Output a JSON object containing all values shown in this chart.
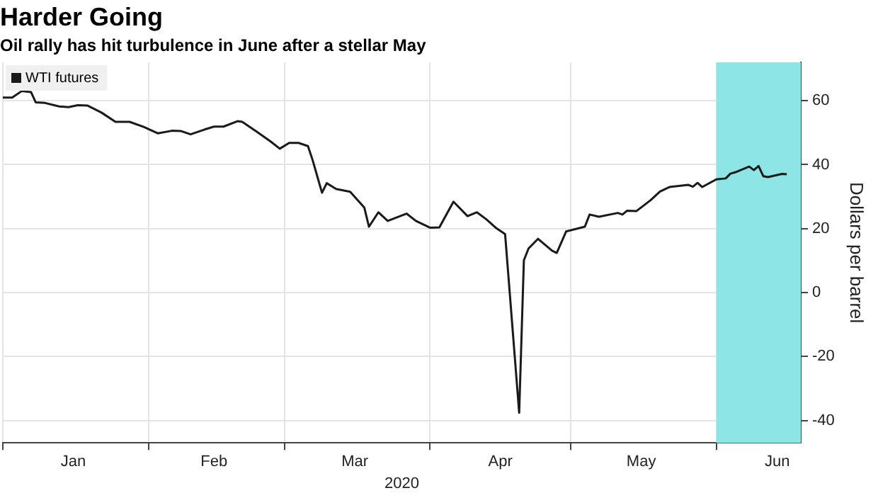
{
  "chart_data": {
    "type": "line",
    "title": "Harder Going",
    "subtitle": "Oil rally has hit turbulence in June after a stellar May",
    "xlabel": "2020",
    "ylabel": "Dollars per barrel",
    "x": [
      "2020-01-01",
      "2020-01-03",
      "2020-01-05",
      "2020-01-07",
      "2020-01-08",
      "2020-01-10",
      "2020-01-13",
      "2020-01-15",
      "2020-01-17",
      "2020-01-19",
      "2020-01-22",
      "2020-01-25",
      "2020-01-28",
      "2020-01-31",
      "2020-02-03",
      "2020-02-06",
      "2020-02-08",
      "2020-02-10",
      "2020-02-13",
      "2020-02-15",
      "2020-02-17",
      "2020-02-20",
      "2020-02-21",
      "2020-02-24",
      "2020-02-27",
      "2020-02-29",
      "2020-03-02",
      "2020-03-04",
      "2020-03-06",
      "2020-03-07",
      "2020-03-09",
      "2020-03-10",
      "2020-03-12",
      "2020-03-15",
      "2020-03-18",
      "2020-03-19",
      "2020-03-21",
      "2020-03-23",
      "2020-03-27",
      "2020-03-29",
      "2020-04-01",
      "2020-04-03",
      "2020-04-06",
      "2020-04-09",
      "2020-04-11",
      "2020-04-13",
      "2020-04-15",
      "2020-04-17",
      "2020-04-20",
      "2020-04-21",
      "2020-04-22",
      "2020-04-24",
      "2020-04-27",
      "2020-04-28",
      "2020-04-30",
      "2020-05-04",
      "2020-05-05",
      "2020-05-07",
      "2020-05-11",
      "2020-05-12",
      "2020-05-13",
      "2020-05-15",
      "2020-05-18",
      "2020-05-20",
      "2020-05-22",
      "2020-05-26",
      "2020-05-27",
      "2020-05-28",
      "2020-05-29",
      "2020-06-01",
      "2020-06-03",
      "2020-06-04",
      "2020-06-05",
      "2020-06-08",
      "2020-06-09",
      "2020-06-10",
      "2020-06-11",
      "2020-06-12",
      "2020-06-15",
      "2020-06-16"
    ],
    "series": [
      {
        "name": "WTI futures",
        "color": "#1a1a1a",
        "values": [
          61,
          61,
          63,
          62.7,
          59.5,
          59.3,
          58.2,
          58,
          58.6,
          58.5,
          56.3,
          53.4,
          53.4,
          51.8,
          49.8,
          50.6,
          50.5,
          49.5,
          51,
          51.9,
          51.9,
          53.6,
          53.4,
          50.4,
          47.3,
          45,
          46.8,
          46.8,
          45.8,
          41.4,
          31.2,
          34.2,
          32.4,
          31.5,
          26.6,
          20.6,
          25.1,
          22.4,
          24.7,
          22.4,
          20.3,
          20.4,
          28.4,
          23.9,
          25.1,
          22.9,
          20.3,
          18.3,
          -37.6,
          10.1,
          13.8,
          16.8,
          13.1,
          12.4,
          19.1,
          20.6,
          24.4,
          23.7,
          24.9,
          24.4,
          25.6,
          25.5,
          28.9,
          31.6,
          33,
          33.7,
          33.1,
          34.3,
          33,
          35.4,
          35.7,
          37.2,
          37.6,
          39.4,
          38.3,
          39.6,
          36.4,
          36.1,
          37.1,
          37
        ]
      }
    ],
    "xlim": [
      "2020-01-01",
      "2020-06-19"
    ],
    "xticks": [
      {
        "value": "2020-01-01",
        "label": null
      },
      {
        "value": "2020-01-16",
        "label": "Jan"
      },
      {
        "value": "2020-02-01",
        "label": null
      },
      {
        "value": "2020-02-15",
        "label": "Feb"
      },
      {
        "value": "2020-03-01",
        "label": null
      },
      {
        "value": "2020-03-16",
        "label": "Mar"
      },
      {
        "value": "2020-04-01",
        "label": null
      },
      {
        "value": "2020-04-16",
        "label": "Apr"
      },
      {
        "value": "2020-05-01",
        "label": null
      },
      {
        "value": "2020-05-16",
        "label": "May"
      },
      {
        "value": "2020-06-01",
        "label": null
      },
      {
        "value": "2020-06-14",
        "label": "Jun"
      }
    ],
    "ylim": [
      -47,
      72
    ],
    "yticks": [
      -40,
      -20,
      0,
      20,
      40,
      60
    ],
    "bands": [
      {
        "axis": "x",
        "from": "2020-06-01",
        "to": "2020-06-19",
        "color": "#8ee5e5"
      }
    ],
    "grid": true,
    "legend": "top left",
    "marker": "none",
    "line_style": "solid"
  }
}
